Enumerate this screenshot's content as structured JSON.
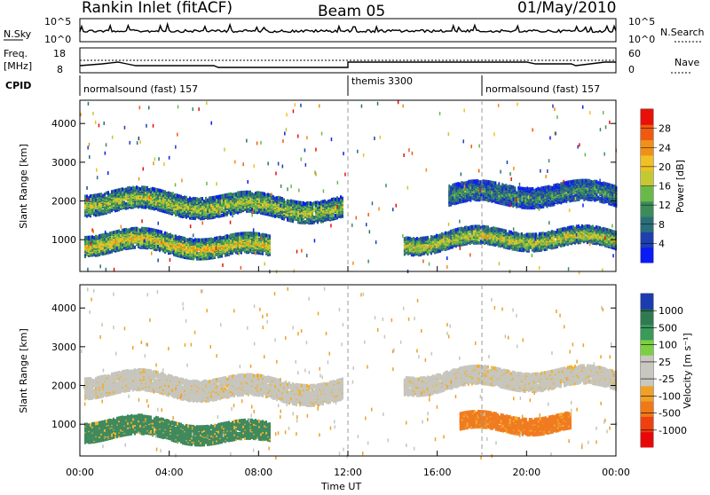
{
  "header": {
    "station": "Rankin Inlet (fitACF)",
    "beam": "Beam 05",
    "date": "01/May/2010"
  },
  "noise_panel": {
    "left_label": "N.Sky",
    "right_label": "N.Search",
    "left_ticks": [
      "10^5",
      "10^0"
    ],
    "right_ticks": [
      "10^5",
      "10^0"
    ]
  },
  "freq_panel": {
    "left_label_1": "Freq.",
    "left_label_2": "[MHz]",
    "right_label": "Nave",
    "left_ticks": [
      "18",
      "8"
    ],
    "right_ticks": [
      "60",
      "0"
    ]
  },
  "cpid": {
    "label": "CPID",
    "segments": [
      {
        "start_hour": 0,
        "end_hour": 12,
        "text": "normalsound (fast) 157"
      },
      {
        "start_hour": 12,
        "end_hour": 18,
        "text": "themis 3300"
      },
      {
        "start_hour": 18,
        "end_hour": 24,
        "text": "normalsound (fast) 157"
      }
    ]
  },
  "chart_data": [
    {
      "type": "heatmap",
      "name": "power",
      "ylabel": "Slant Range [km]",
      "yticks": [
        1000,
        2000,
        3000,
        4000
      ],
      "ylim": [
        180,
        4600
      ],
      "xlim": [
        0,
        24
      ],
      "colorbar_label": "Power [dB]",
      "colorbar_ticks": [
        "4",
        "8",
        "12",
        "16",
        "20",
        "24",
        "28"
      ],
      "colorbar_colors": [
        "#0a1cf5",
        "#1f3fb0",
        "#2a6e7a",
        "#3b8c5a",
        "#6bb84a",
        "#c4c832",
        "#f0c024",
        "#f09018",
        "#f05a10",
        "#e81008"
      ],
      "bands": [
        {
          "start_hour": 0.2,
          "end_hour": 11.8,
          "center_km": 1950,
          "width_km": 520,
          "level": 0.55
        },
        {
          "start_hour": 0.2,
          "end_hour": 8.5,
          "center_km": 900,
          "width_km": 500,
          "level": 0.65
        },
        {
          "start_hour": 14.5,
          "end_hour": 24,
          "center_km": 1000,
          "width_km": 420,
          "level": 0.6
        },
        {
          "start_hour": 16.5,
          "end_hour": 24,
          "center_km": 2150,
          "width_km": 500,
          "level": 0.35
        }
      ]
    },
    {
      "type": "heatmap",
      "name": "velocity",
      "ylabel": "Slant Range [km]",
      "yticks": [
        1000,
        2000,
        3000,
        4000
      ],
      "ylim": [
        180,
        4600
      ],
      "xlim": [
        0,
        24
      ],
      "xticks": [
        "00:00",
        "04:00",
        "08:00",
        "12:00",
        "16:00",
        "20:00",
        "00:00"
      ],
      "xlabel": "Time UT",
      "colorbar_label": "Velocity [m s⁻¹]",
      "colorbar_ticks": [
        "1000",
        "500",
        "100",
        "25",
        "-25",
        "-100",
        "-500",
        "-1000"
      ],
      "colorbar_colors": [
        "#1a3cb0",
        "#2f7a50",
        "#3a9a5a",
        "#7ad040",
        "#c8c8c0",
        "#c8c8c0",
        "#f0a028",
        "#f07818",
        "#f04010",
        "#e80808"
      ],
      "bands": [
        {
          "start_hour": 0.2,
          "end_hour": 11.8,
          "center_km": 2000,
          "width_km": 520,
          "color": "#c6c6be"
        },
        {
          "start_hour": 0.2,
          "end_hour": 8.5,
          "center_km": 850,
          "width_km": 480,
          "color": "#3f8a5e"
        },
        {
          "start_hour": 17,
          "end_hour": 22,
          "center_km": 1000,
          "width_km": 400,
          "color": "#f07a20"
        },
        {
          "start_hour": 14.5,
          "end_hour": 24,
          "center_km": 2150,
          "width_km": 450,
          "color": "#c6c6be"
        }
      ]
    }
  ]
}
